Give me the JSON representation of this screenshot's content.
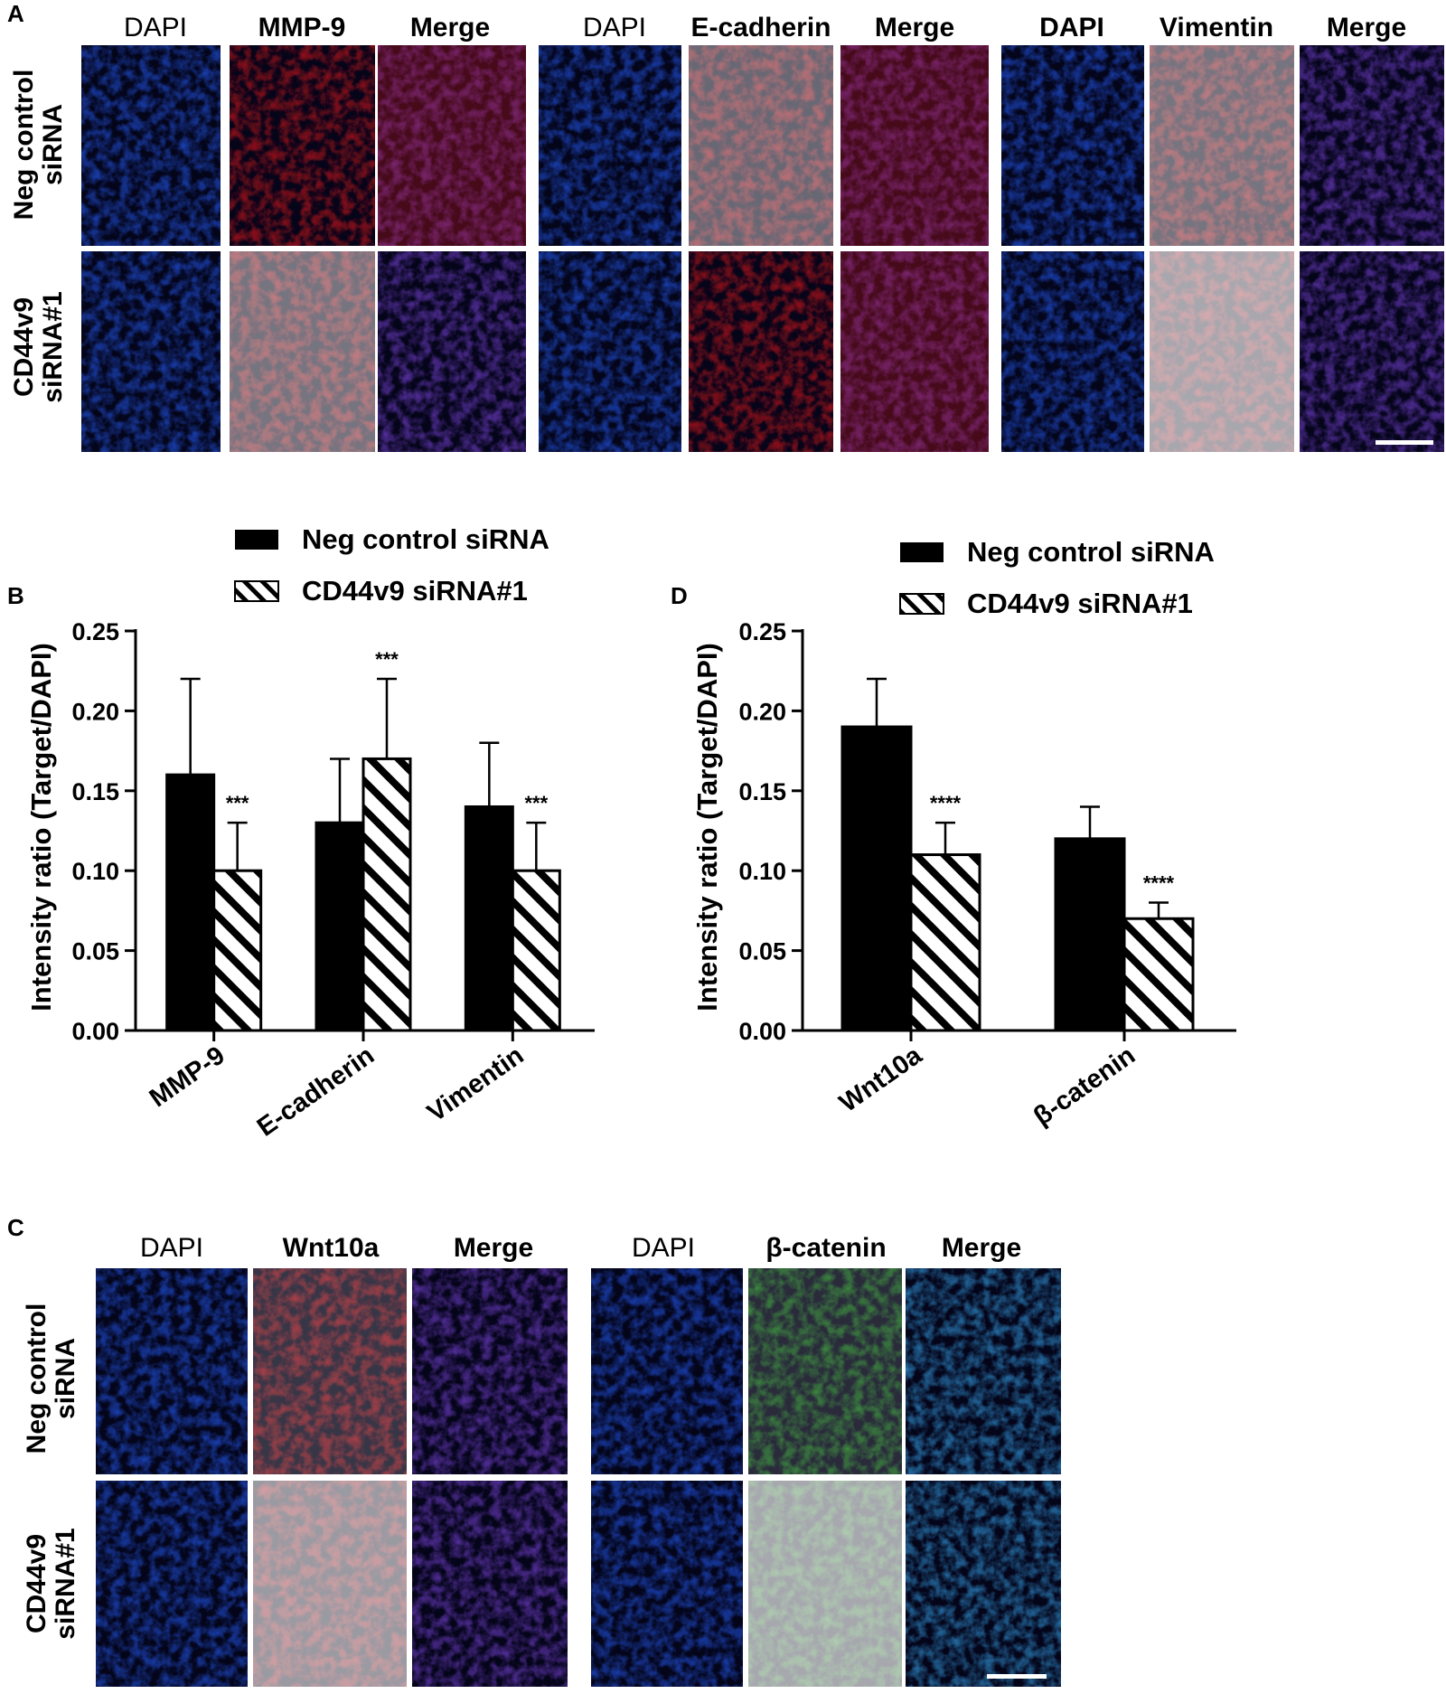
{
  "panel_labels": {
    "a": "A",
    "b": "B",
    "c": "C",
    "d": "D"
  },
  "panel_a": {
    "column_headers": [
      "DAPI",
      "MMP-9",
      "Merge",
      "DAPI",
      "E-cadherin",
      "Merge",
      "DAPI",
      "Vimentin",
      "Merge"
    ],
    "row_labels": [
      {
        "line1": "Neg control",
        "line2": "siRNA"
      },
      {
        "line1": "CD44v9",
        "line2": "siRNA#1"
      }
    ]
  },
  "panel_c": {
    "column_headers": [
      "DAPI",
      "Wnt10a",
      "Merge",
      "DAPI",
      "β-catenin",
      "Merge"
    ],
    "row_labels": [
      {
        "line1": "Neg control",
        "line2": "siRNA"
      },
      {
        "line1": "CD44v9",
        "line2": "siRNA#1"
      }
    ]
  },
  "colors": {
    "dapi_blue": "#1f4fd8",
    "red_stain": "#c0141a",
    "green_stain": "#1f8f1f",
    "merge_purple": "#6a3bc0",
    "merge_cyan": "#2f8fd0",
    "bar_solid": "#000000",
    "bar_hatched": "#ffffff"
  },
  "chart_data": [
    {
      "panel": "B",
      "type": "bar",
      "categories": [
        "MMP-9",
        "E-cadherin",
        "Vimentin"
      ],
      "series": [
        {
          "name": "Neg control siRNA",
          "pattern": "solid",
          "values": [
            0.16,
            0.13,
            0.14
          ],
          "errors": [
            0.06,
            0.04,
            0.04
          ],
          "significance": [
            "",
            "",
            ""
          ]
        },
        {
          "name": "CD44v9 siRNA#1",
          "pattern": "hatched",
          "values": [
            0.1,
            0.17,
            0.1
          ],
          "errors": [
            0.03,
            0.05,
            0.03
          ],
          "significance": [
            "***",
            "***",
            "***"
          ]
        }
      ],
      "ylabel": "Intensity ratio (Target/DAPI)",
      "xlabel": "",
      "ylim": [
        0,
        0.25
      ],
      "yticks": [
        "0.00",
        "0.05",
        "0.10",
        "0.15",
        "0.20",
        "0.25"
      ],
      "legend_position": "top"
    },
    {
      "panel": "D",
      "type": "bar",
      "categories": [
        "Wnt10a",
        "β-catenin"
      ],
      "series": [
        {
          "name": "Neg control siRNA",
          "pattern": "solid",
          "values": [
            0.19,
            0.12
          ],
          "errors": [
            0.03,
            0.02
          ],
          "significance": [
            "",
            ""
          ]
        },
        {
          "name": "CD44v9 siRNA#1",
          "pattern": "hatched",
          "values": [
            0.11,
            0.07
          ],
          "errors": [
            0.02,
            0.01
          ],
          "significance": [
            "****",
            "****"
          ]
        }
      ],
      "ylabel": "Intensity ratio (Target/DAPI)",
      "xlabel": "",
      "ylim": [
        0,
        0.25
      ],
      "yticks": [
        "0.00",
        "0.05",
        "0.10",
        "0.15",
        "0.20",
        "0.25"
      ],
      "legend_position": "top"
    }
  ]
}
